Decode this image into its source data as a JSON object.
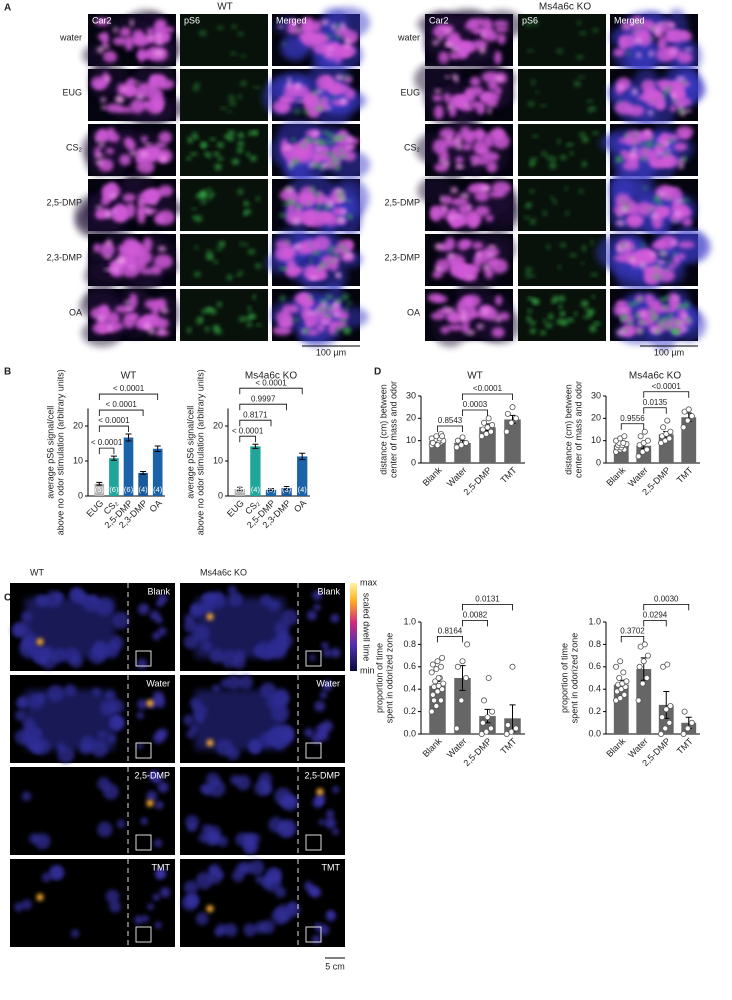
{
  "panel_labels": [
    "A",
    "B",
    "C",
    "D"
  ],
  "panel_a": {
    "groups": [
      {
        "title": "WT",
        "columns": [
          "Car2",
          "pS6",
          "Merged"
        ],
        "rows": [
          "water",
          "EUG",
          "CS₂",
          "2,5-DMP",
          "2,3-DMP",
          "OA"
        ],
        "scale_bar": "100 µm"
      },
      {
        "title": "Ms4a6c KO",
        "columns": [
          "Car2",
          "pS6",
          "Merged"
        ],
        "rows": [
          "water",
          "EUG",
          "CS₂",
          "2,5-DMP",
          "2,3-DMP",
          "OA"
        ],
        "scale_bar": "100 µm"
      }
    ]
  },
  "panel_c": {
    "groups": [
      "WT",
      "Ms4a6c KO"
    ],
    "rows": [
      "Blank",
      "Water",
      "2,5-DMP",
      "TMT"
    ],
    "colorbar": {
      "max": "max",
      "min": "min",
      "label": "scaled dwell time"
    },
    "scale_bar": "5 cm"
  },
  "chart_data": [
    {
      "type": "bar",
      "title": "WT",
      "y_label": [
        "average pS6 signal/cell",
        "above no odor stimulation (arbitrary units)"
      ],
      "categories": [
        "EUG",
        "CS₂",
        "2,5-DMP",
        "2,3-DMP",
        "OA"
      ],
      "values": [
        3.5,
        10.8,
        16.7,
        6.6,
        13.5
      ],
      "errors": [
        0.4,
        0.6,
        1.0,
        0.4,
        0.8
      ],
      "colors": [
        "#b3b3b3",
        "#1fa59a",
        "#1b63a8",
        "#1b5a9a",
        "#1b63a8"
      ],
      "n_labels": [
        "(5)",
        "(6)",
        "(6)",
        "(4)",
        "(4)"
      ],
      "ylim": [
        0,
        25
      ],
      "yticks": [
        0,
        10,
        20
      ],
      "comparisons": [
        {
          "between": [
            "EUG",
            "CS₂"
          ],
          "label": "< 0.0001"
        },
        {
          "between": [
            "EUG",
            "2,5-DMP"
          ],
          "label": "< 0.0001"
        },
        {
          "between": [
            "EUG",
            "2,3-DMP"
          ],
          "label": "< 0.0001"
        },
        {
          "between": [
            "EUG",
            "OA"
          ],
          "label": "< 0.0001"
        }
      ]
    },
    {
      "type": "bar",
      "title": "Ms4a6c KO",
      "y_label": [
        "average pS6 signal/cell",
        "above no odor stimulation (arbitrary units)"
      ],
      "categories": [
        "EUG",
        "CS₂",
        "2,5-DMP",
        "2,3-DMP",
        "OA"
      ],
      "values": [
        2.0,
        14.2,
        1.8,
        2.3,
        11.3
      ],
      "errors": [
        0.5,
        0.6,
        0.3,
        0.4,
        0.9
      ],
      "colors": [
        "#b3b3b3",
        "#1fa59a",
        "#1b63a8",
        "#1b5a9a",
        "#1b63a8"
      ],
      "n_labels": [
        "(3)",
        "(4)",
        "(5)",
        "(3)",
        "(4)"
      ],
      "ylim": [
        0,
        25
      ],
      "yticks": [
        0,
        10,
        20
      ],
      "comparisons": [
        {
          "between": [
            "EUG",
            "CS₂"
          ],
          "label": "< 0.0001"
        },
        {
          "between": [
            "EUG",
            "2,5-DMP"
          ],
          "label": "0.8171"
        },
        {
          "between": [
            "EUG",
            "2,3-DMP"
          ],
          "label": "0.9997"
        },
        {
          "between": [
            "EUG",
            "OA"
          ],
          "label": "< 0.0001"
        }
      ]
    },
    {
      "type": "bar",
      "title": "WT",
      "y_label": [
        "distance (cm) between",
        "center of mass and odor"
      ],
      "categories": [
        "Blank",
        "Water",
        "2,5-DMP",
        "TMT"
      ],
      "values": [
        9.8,
        9.0,
        16.0,
        19.5
      ],
      "errors": [
        0.6,
        1.0,
        1.5,
        1.8
      ],
      "colors": [
        "#666666",
        "#666666",
        "#666666",
        "#666666"
      ],
      "points": [
        [
          8,
          8.5,
          9,
          9,
          9.5,
          9.5,
          10,
          10,
          10,
          10.5,
          11,
          11,
          12,
          13,
          9,
          8,
          12
        ],
        [
          7,
          8,
          9,
          10,
          11.5
        ],
        [
          12,
          13,
          14,
          15,
          16,
          17,
          18,
          20
        ],
        [
          14,
          18,
          20,
          22,
          25
        ]
      ],
      "ylim": [
        0,
        30
      ],
      "yticks": [
        0,
        10,
        20,
        30
      ],
      "comparisons": [
        {
          "between": [
            "Blank",
            "Water"
          ],
          "label": "0.8543"
        },
        {
          "between": [
            "Water",
            "2,5-DMP"
          ],
          "label": "0.0003"
        },
        {
          "between": [
            "Water",
            "TMT"
          ],
          "label": "<0.0001"
        }
      ]
    },
    {
      "type": "bar",
      "title": "Ms4a6c KO",
      "y_label": [
        "distance (cm) between",
        "center of mass and odor"
      ],
      "categories": [
        "Blank",
        "Water",
        "2,5-DMP",
        "TMT"
      ],
      "values": [
        7.9,
        7.7,
        12.8,
        20.5
      ],
      "errors": [
        0.6,
        1.3,
        1.3,
        1.9
      ],
      "colors": [
        "#666666",
        "#666666",
        "#666666",
        "#666666"
      ],
      "points": [
        [
          5,
          6,
          6,
          7,
          7,
          8,
          8,
          8,
          8.5,
          9,
          9,
          10,
          11,
          12
        ],
        [
          3,
          5,
          6,
          8,
          9,
          10,
          12,
          14
        ],
        [
          9,
          10,
          11,
          12,
          13,
          14,
          16,
          19
        ],
        [
          16,
          19,
          21,
          23,
          24
        ]
      ],
      "ylim": [
        0,
        30
      ],
      "yticks": [
        0,
        10,
        20,
        30
      ],
      "comparisons": [
        {
          "between": [
            "Blank",
            "Water"
          ],
          "label": "0.9556"
        },
        {
          "between": [
            "Water",
            "2,5-DMP"
          ],
          "label": "0.0135"
        },
        {
          "between": [
            "Water",
            "TMT"
          ],
          "label": "<0.0001"
        }
      ]
    },
    {
      "type": "bar",
      "y_label": [
        "proportion of time",
        "spent in odorized zone"
      ],
      "categories": [
        "Blank",
        "Water",
        "2,5-DMP",
        "TMT"
      ],
      "values": [
        0.43,
        0.5,
        0.16,
        0.14
      ],
      "errors": [
        0.04,
        0.11,
        0.06,
        0.12
      ],
      "colors": [
        "#666666",
        "#666666",
        "#666666",
        "#666666"
      ],
      "points": [
        [
          0.2,
          0.25,
          0.3,
          0.35,
          0.38,
          0.4,
          0.42,
          0.43,
          0.45,
          0.47,
          0.5,
          0.55,
          0.58,
          0.6,
          0.62,
          0.65,
          0.68,
          0.3,
          0.5
        ],
        [
          0.05,
          0.3,
          0.5,
          0.6,
          0.65,
          0.8
        ],
        [
          0,
          0.02,
          0.05,
          0.1,
          0.15,
          0.2,
          0.3,
          0.5
        ],
        [
          0,
          0.02,
          0.05,
          0.08,
          0.6
        ]
      ],
      "ylim": [
        0,
        1
      ],
      "yticks": [
        {
          "value": 0,
          "label": "0.0"
        },
        0.2,
        0.4,
        0.6,
        0.8,
        {
          "value": 1,
          "label": "1.0"
        }
      ],
      "comparisons": [
        {
          "between": [
            "Blank",
            "Water"
          ],
          "label": "0.8164"
        },
        {
          "between": [
            "Water",
            "2,5-DMP"
          ],
          "label": "0.0082"
        },
        {
          "between": [
            "Water",
            "TMT"
          ],
          "label": "0.0131"
        }
      ]
    },
    {
      "type": "bar",
      "y_label": [
        "proportion of time",
        "spent in odorized zone"
      ],
      "categories": [
        "Blank",
        "Water",
        "2,5-DMP",
        "TMT"
      ],
      "values": [
        0.44,
        0.58,
        0.26,
        0.1
      ],
      "errors": [
        0.04,
        0.1,
        0.12,
        0.05
      ],
      "colors": [
        "#666666",
        "#666666",
        "#666666",
        "#666666"
      ],
      "points": [
        [
          0.3,
          0.32,
          0.35,
          0.38,
          0.4,
          0.42,
          0.44,
          0.45,
          0.47,
          0.5,
          0.55,
          0.6,
          0.65
        ],
        [
          0.3,
          0.45,
          0.5,
          0.6,
          0.65,
          0.7,
          0.78,
          0.8
        ],
        [
          0,
          0.05,
          0.1,
          0.15,
          0.22,
          0.25,
          0.6,
          0.62
        ],
        [
          0,
          0.05,
          0.1,
          0.2
        ]
      ],
      "ylim": [
        0,
        1
      ],
      "yticks": [
        {
          "value": 0,
          "label": "0.0"
        },
        0.2,
        0.4,
        0.6,
        0.8,
        {
          "value": 1,
          "label": "1.0"
        }
      ],
      "comparisons": [
        {
          "between": [
            "Blank",
            "Water"
          ],
          "label": "0.3702"
        },
        {
          "between": [
            "Water",
            "2,5-DMP"
          ],
          "label": "0.0294"
        },
        {
          "between": [
            "Water",
            "TMT"
          ],
          "label": "0.0030"
        }
      ]
    }
  ]
}
